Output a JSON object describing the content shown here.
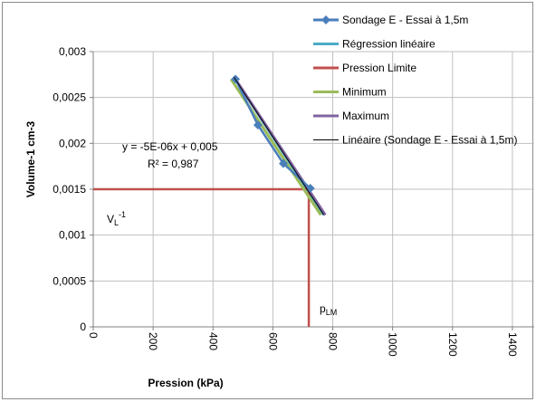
{
  "chart_data": {
    "type": "scatter",
    "xlabel": "Pression (kPa)",
    "ylabel": "Volume-1 cm-3",
    "xlim": [
      0,
      1500
    ],
    "ylim": [
      0,
      0.003
    ],
    "x_ticks": [
      0,
      200,
      400,
      600,
      800,
      1000,
      1200,
      1400
    ],
    "x_tick_labels": [
      "0",
      "200",
      "400",
      "600",
      "800",
      "1000",
      "1200",
      "1400"
    ],
    "y_ticks": [
      0,
      0.0005,
      0.001,
      0.0015,
      0.002,
      0.0025,
      0.003
    ],
    "y_tick_labels": [
      "0",
      "0,0005",
      "0,001",
      "0,0015",
      "0,002",
      "0,0025",
      "0,003"
    ],
    "grid": true,
    "legend_position": "top-right",
    "series": [
      {
        "name": "Sondage E - Essai à 1,5m",
        "kind": "line-markers",
        "color": "#4a7ebb",
        "x": [
          475,
          550,
          635,
          725
        ],
        "y": [
          0.0027,
          0.0022,
          0.00178,
          0.00151
        ]
      },
      {
        "name": "Régression linéaire",
        "kind": "line",
        "color": "#4bacc6",
        "x": [
          470,
          770
        ],
        "y": [
          0.00272,
          0.00122
        ]
      },
      {
        "name": "Pression Limite",
        "kind": "line",
        "color": "#c0504d",
        "segments": [
          {
            "x": [
              0,
              720
            ],
            "y": [
              0.0015,
              0.0015
            ]
          },
          {
            "x": [
              720,
              720
            ],
            "y": [
              0.0015,
              0
            ]
          }
        ]
      },
      {
        "name": "Minimum",
        "kind": "line",
        "color": "#9bbb59",
        "x": [
          460,
          760
        ],
        "y": [
          0.0027,
          0.00122
        ]
      },
      {
        "name": "Maximum",
        "kind": "line",
        "color": "#8064a2",
        "x": [
          475,
          775
        ],
        "y": [
          0.0027,
          0.00122
        ]
      },
      {
        "name": "Linéaire (Sondage E - Essai à 1,5m)",
        "kind": "line",
        "color": "#000000",
        "x": [
          470,
          770
        ],
        "y": [
          0.00272,
          0.00122
        ]
      }
    ],
    "annotations": {
      "equation": "y = -5E-06x + 0,005",
      "r_squared": "R² = 0,987",
      "vl_base": "V",
      "vl_sub": "L",
      "vl_sup": "-1",
      "plm_base": "p",
      "plm_sub": "LM"
    }
  }
}
